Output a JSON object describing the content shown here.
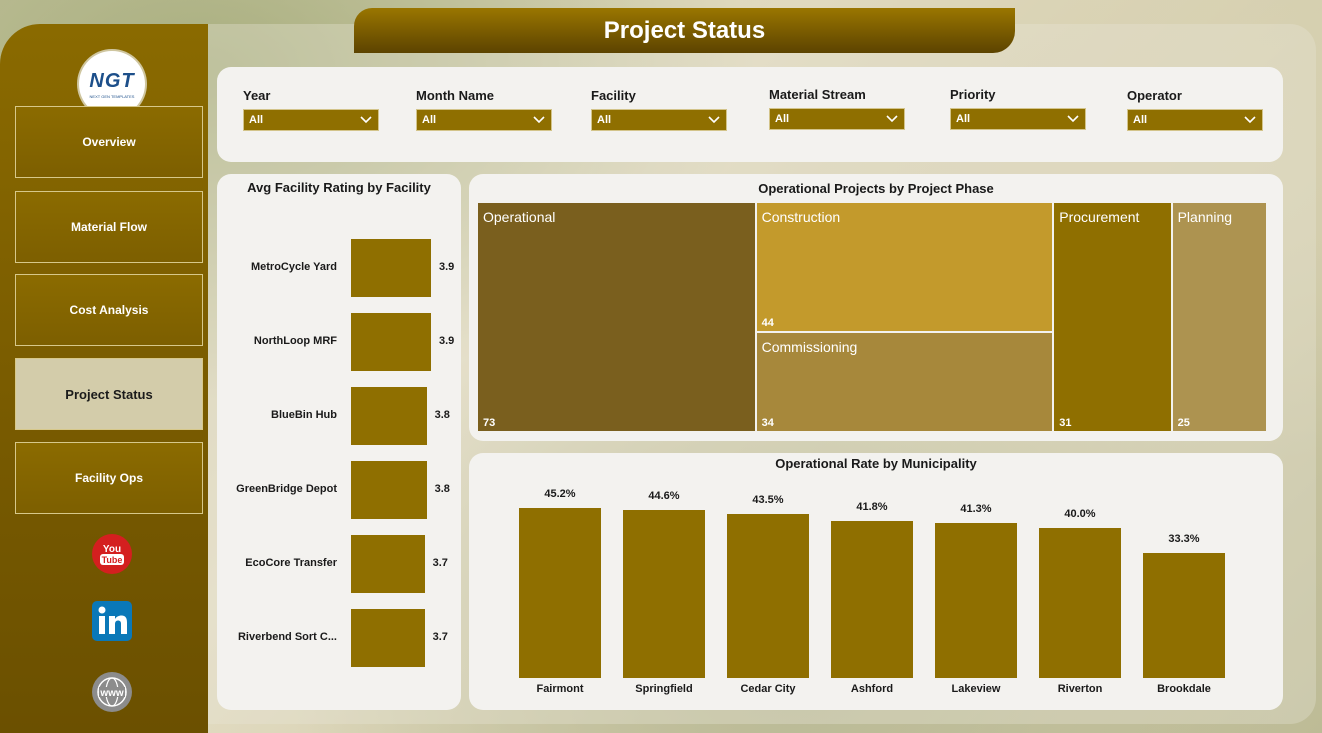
{
  "title": "Project Status",
  "logo": {
    "mark": "NGT",
    "tagline": "NEXT GEN TEMPLATES"
  },
  "nav": [
    {
      "label": "Overview"
    },
    {
      "label": "Material Flow"
    },
    {
      "label": "Cost Analysis"
    },
    {
      "label": "Project Status"
    },
    {
      "label": "Facility Ops"
    }
  ],
  "social": [
    "youtube-icon",
    "linkedin-icon",
    "globe-icon"
  ],
  "filters": [
    {
      "label": "Year",
      "value": "All"
    },
    {
      "label": "Month Name",
      "value": "All"
    },
    {
      "label": "Facility",
      "value": "All"
    },
    {
      "label": "Material Stream",
      "value": "All"
    },
    {
      "label": "Priority",
      "value": "All"
    },
    {
      "label": "Operator",
      "value": "All"
    }
  ],
  "colors": {
    "bar": "#8f6f00",
    "sidebar": "#7a5c00",
    "active_nav": "#d3ccaa"
  },
  "facility_chart": {
    "title": "Avg Facility Rating by Facility",
    "type": "bar",
    "categories": [
      "MetroCycle Yard",
      "NorthLoop MRF",
      "BlueBin Hub",
      "GreenBridge Depot",
      "EcoCore Transfer",
      "Riverbend Sort C..."
    ],
    "values": [
      3.9,
      3.9,
      3.8,
      3.8,
      3.7,
      3.7
    ],
    "value_labels": [
      "3.9",
      "3.9",
      "3.8",
      "3.8",
      "3.7",
      "3.7"
    ]
  },
  "phase_chart": {
    "title": "Operational Projects by Project Phase",
    "type": "treemap",
    "items": [
      {
        "name": "Operational",
        "value": 73,
        "color": "#7a5f1e"
      },
      {
        "name": "Construction",
        "value": 44,
        "color": "#c39a2c"
      },
      {
        "name": "Commissioning",
        "value": 34,
        "color": "#a7883b"
      },
      {
        "name": "Procurement",
        "value": 31,
        "color": "#8f6f00"
      },
      {
        "name": "Planning",
        "value": 25,
        "color": "#ad9350"
      }
    ]
  },
  "municipality_chart": {
    "title": "Operational Rate by Municipality",
    "type": "bar",
    "categories": [
      "Fairmont",
      "Springfield",
      "Cedar City",
      "Ashford",
      "Lakeview",
      "Riverton",
      "Brookdale"
    ],
    "values": [
      45.2,
      44.6,
      43.5,
      41.8,
      41.3,
      40.0,
      33.3
    ],
    "value_labels": [
      "45.2%",
      "44.6%",
      "43.5%",
      "41.8%",
      "41.3%",
      "40.0%",
      "33.3%"
    ]
  }
}
